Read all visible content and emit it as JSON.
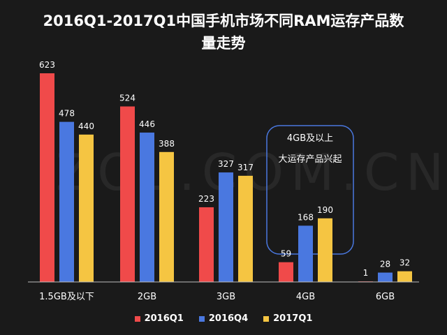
{
  "chart_data": {
    "type": "bar",
    "title": "2016Q1-2017Q1中国手机市场不同RAM运存产品数量走势",
    "title_lines": [
      "2016Q1-2017Q1中国手机市场不同RAM运存产品数",
      "量走势"
    ],
    "categories": [
      "1.5GB及以下",
      "2GB",
      "3GB",
      "4GB",
      "6GB"
    ],
    "series": [
      {
        "name": "2016Q1",
        "color": "#f04a4a",
        "values": [
          623,
          524,
          223,
          59,
          1
        ]
      },
      {
        "name": "2016Q4",
        "color": "#4a78e0",
        "values": [
          478,
          446,
          327,
          168,
          28
        ]
      },
      {
        "name": "2017Q1",
        "color": "#f5c542",
        "values": [
          440,
          388,
          317,
          190,
          32
        ]
      }
    ],
    "ylim": [
      0,
      623
    ],
    "grid": false,
    "legend_position": "bottom",
    "annotation": {
      "lines": [
        "4GB及以上",
        "大运存产品兴起"
      ],
      "color": "#4a78e0"
    },
    "watermark": "ZOL.COM.CN"
  }
}
